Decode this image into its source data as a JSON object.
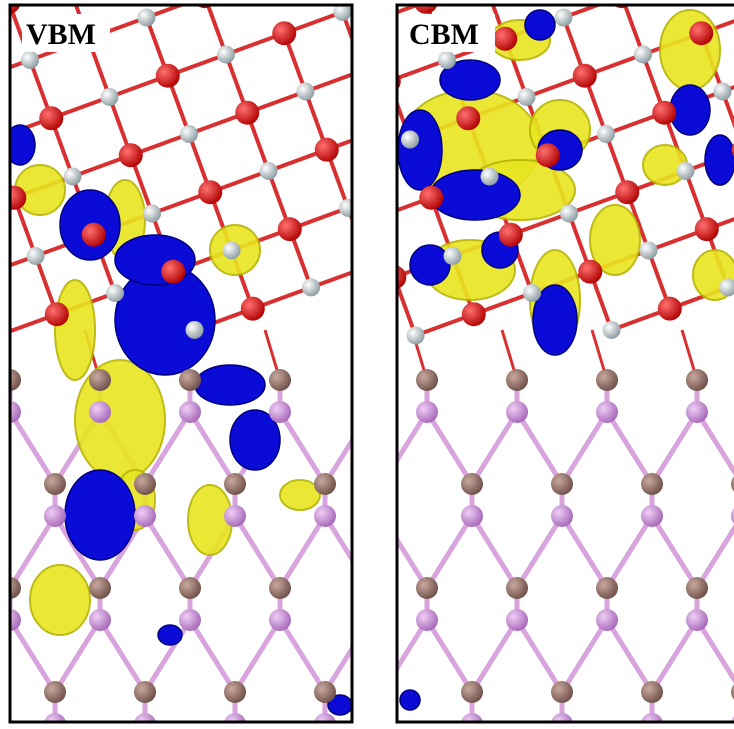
{
  "panels": [
    {
      "label": "VBM"
    },
    {
      "label": "CBM"
    }
  ]
}
